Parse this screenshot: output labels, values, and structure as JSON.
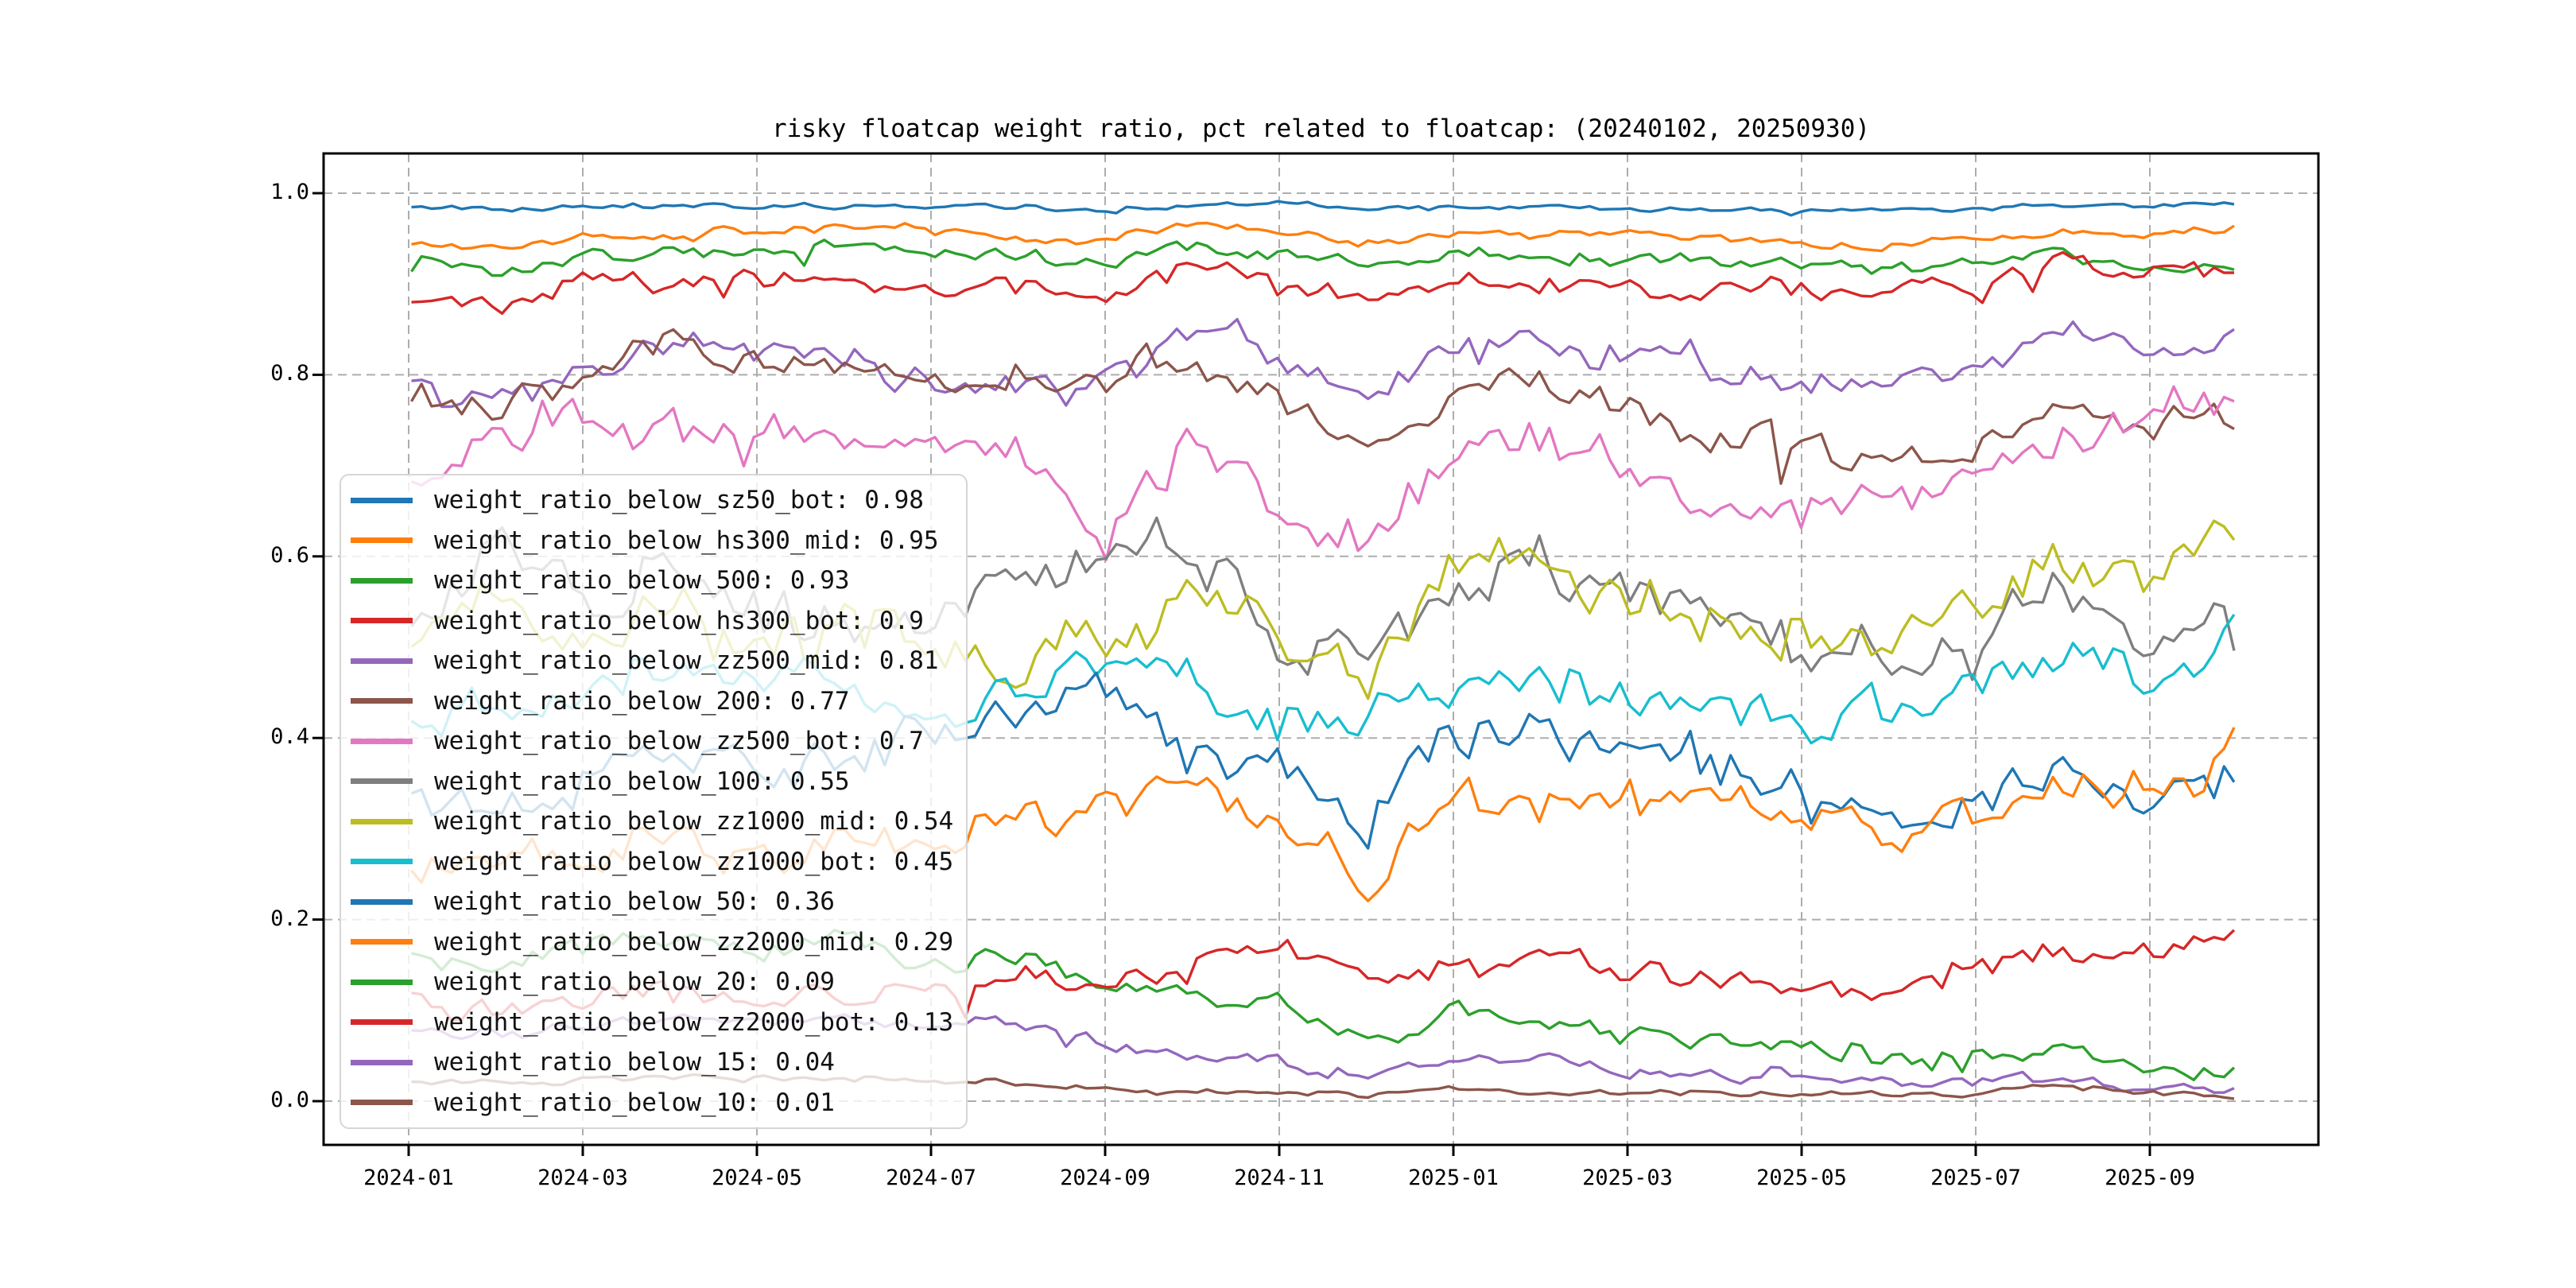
{
  "title": "risky floatcap weight ratio, pct related to floatcap: (20240102, 20250930)",
  "axes": {
    "x_tick_labels": [
      "2024-01",
      "2024-03",
      "2024-05",
      "2024-07",
      "2024-09",
      "2024-11",
      "2025-01",
      "2025-03",
      "2025-05",
      "2025-07",
      "2025-09"
    ],
    "y_tick_labels": [
      "0.0",
      "0.2",
      "0.4",
      "0.6",
      "0.8",
      "1.0"
    ]
  },
  "colors": {
    "background": "#ffffff",
    "grid": "#adadad",
    "spine": "#000000",
    "text": "#000000",
    "legend_border": "#d6d6d6"
  },
  "chart_data": {
    "type": "line",
    "title": "risky floatcap weight ratio, pct related to floatcap: (20240102, 20250930)",
    "xlabel": "",
    "ylabel": "",
    "x_range": [
      "2024-01-02",
      "2025-09-30"
    ],
    "ylim": [
      -0.048,
      1.043
    ],
    "grid": true,
    "legend_position": "center-left",
    "x_anchor_dates": [
      "2024-01",
      "2024-02",
      "2024-03",
      "2024-04",
      "2024-05",
      "2024-06",
      "2024-07",
      "2024-08",
      "2024-09",
      "2024-10",
      "2024-11",
      "2024-12",
      "2025-01",
      "2025-02",
      "2025-03",
      "2025-04",
      "2025-05",
      "2025-06",
      "2025-07",
      "2025-08",
      "2025-09",
      "2025-09-30"
    ],
    "series": [
      {
        "name": "weight_ratio_below_sz50_bot",
        "legend_value": "0.98",
        "color": "#1f77b4",
        "noise": 0.0015,
        "anchors": [
          0.983,
          0.982,
          0.985,
          0.985,
          0.984,
          0.986,
          0.986,
          0.984,
          0.982,
          0.987,
          0.988,
          0.982,
          0.985,
          0.984,
          0.983,
          0.982,
          0.982,
          0.981,
          0.983,
          0.985,
          0.986,
          0.988
        ]
      },
      {
        "name": "weight_ratio_below_hs300_mid",
        "legend_value": "0.95",
        "color": "#ff7f0e",
        "noise": 0.003,
        "anchors": [
          0.945,
          0.94,
          0.955,
          0.957,
          0.958,
          0.96,
          0.958,
          0.952,
          0.945,
          0.964,
          0.958,
          0.944,
          0.952,
          0.954,
          0.953,
          0.95,
          0.947,
          0.944,
          0.947,
          0.958,
          0.95,
          0.962
        ]
      },
      {
        "name": "weight_ratio_below_500",
        "legend_value": "0.93",
        "color": "#2ca02c",
        "noise": 0.004,
        "anchors": [
          0.924,
          0.915,
          0.935,
          0.938,
          0.937,
          0.94,
          0.935,
          0.932,
          0.923,
          0.942,
          0.933,
          0.92,
          0.93,
          0.932,
          0.928,
          0.924,
          0.92,
          0.917,
          0.92,
          0.933,
          0.918,
          0.923
        ]
      },
      {
        "name": "weight_ratio_below_hs300_bot",
        "legend_value": "0.9",
        "color": "#d62728",
        "noise": 0.006,
        "anchors": [
          0.885,
          0.872,
          0.9,
          0.905,
          0.905,
          0.91,
          0.9,
          0.9,
          0.887,
          0.92,
          0.905,
          0.888,
          0.9,
          0.905,
          0.9,
          0.896,
          0.893,
          0.888,
          0.895,
          0.925,
          0.908,
          0.92
        ]
      },
      {
        "name": "weight_ratio_below_zz500_mid",
        "legend_value": "0.81",
        "color": "#9467bd",
        "noise": 0.01,
        "anchors": [
          0.785,
          0.765,
          0.8,
          0.838,
          0.83,
          0.83,
          0.79,
          0.8,
          0.8,
          0.852,
          0.83,
          0.775,
          0.82,
          0.84,
          0.82,
          0.81,
          0.8,
          0.79,
          0.8,
          0.85,
          0.83,
          0.848
        ]
      },
      {
        "name": "weight_ratio_below_200",
        "legend_value": "0.77",
        "color": "#8c564b",
        "noise": 0.01,
        "anchors": [
          0.78,
          0.76,
          0.8,
          0.835,
          0.825,
          0.825,
          0.785,
          0.79,
          0.79,
          0.82,
          0.78,
          0.705,
          0.775,
          0.8,
          0.77,
          0.74,
          0.72,
          0.71,
          0.72,
          0.755,
          0.74,
          0.755
        ]
      },
      {
        "name": "weight_ratio_below_zz500_bot",
        "legend_value": "0.7",
        "color": "#e377c2",
        "noise": 0.013,
        "anchors": [
          0.67,
          0.73,
          0.75,
          0.74,
          0.73,
          0.75,
          0.71,
          0.71,
          0.615,
          0.73,
          0.66,
          0.625,
          0.7,
          0.725,
          0.695,
          0.66,
          0.65,
          0.645,
          0.68,
          0.73,
          0.745,
          0.768
        ]
      },
      {
        "name": "weight_ratio_below_100",
        "legend_value": "0.55",
        "color": "#7f7f7f",
        "noise": 0.016,
        "anchors": [
          0.54,
          0.62,
          0.56,
          0.6,
          0.54,
          0.52,
          0.53,
          0.55,
          0.6,
          0.62,
          0.5,
          0.48,
          0.55,
          0.6,
          0.56,
          0.54,
          0.5,
          0.47,
          0.5,
          0.58,
          0.52,
          0.565
        ]
      },
      {
        "name": "weight_ratio_below_zz1000_mid",
        "legend_value": "0.54",
        "color": "#bcbd22",
        "noise": 0.016,
        "anchors": [
          0.5,
          0.56,
          0.51,
          0.55,
          0.5,
          0.51,
          0.49,
          0.49,
          0.52,
          0.565,
          0.5,
          0.47,
          0.58,
          0.59,
          0.56,
          0.54,
          0.52,
          0.5,
          0.54,
          0.6,
          0.58,
          0.635
        ]
      },
      {
        "name": "weight_ratio_below_zz1000_bot",
        "legend_value": "0.45",
        "color": "#17becf",
        "noise": 0.013,
        "anchors": [
          0.43,
          0.42,
          0.46,
          0.48,
          0.45,
          0.46,
          0.42,
          0.45,
          0.48,
          0.48,
          0.41,
          0.41,
          0.46,
          0.47,
          0.45,
          0.44,
          0.42,
          0.43,
          0.45,
          0.5,
          0.47,
          0.525
        ]
      },
      {
        "name": "weight_ratio_below_50",
        "legend_value": "0.36",
        "color": "#1f77b4",
        "noise": 0.013,
        "anchors": [
          0.33,
          0.31,
          0.35,
          0.37,
          0.36,
          0.38,
          0.41,
          0.43,
          0.45,
          0.4,
          0.37,
          0.3,
          0.4,
          0.4,
          0.39,
          0.38,
          0.34,
          0.3,
          0.33,
          0.36,
          0.33,
          0.35
        ]
      },
      {
        "name": "weight_ratio_below_zz2000_mid",
        "legend_value": "0.29",
        "color": "#ff7f0e",
        "noise": 0.012,
        "anchors": [
          0.26,
          0.25,
          0.27,
          0.285,
          0.27,
          0.28,
          0.27,
          0.31,
          0.32,
          0.33,
          0.3,
          0.245,
          0.33,
          0.32,
          0.33,
          0.34,
          0.3,
          0.295,
          0.32,
          0.35,
          0.34,
          0.385
        ]
      },
      {
        "name": "weight_ratio_below_20",
        "legend_value": "0.09",
        "color": "#2ca02c",
        "noise": 0.007,
        "anchors": [
          0.155,
          0.15,
          0.17,
          0.18,
          0.165,
          0.17,
          0.15,
          0.16,
          0.125,
          0.12,
          0.11,
          0.065,
          0.095,
          0.085,
          0.075,
          0.07,
          0.06,
          0.045,
          0.05,
          0.055,
          0.04,
          0.042
        ]
      },
      {
        "name": "weight_ratio_below_zz2000_bot",
        "legend_value": "0.13",
        "color": "#d62728",
        "noise": 0.007,
        "anchors": [
          0.105,
          0.1,
          0.115,
          0.12,
          0.115,
          0.12,
          0.12,
          0.135,
          0.14,
          0.15,
          0.165,
          0.13,
          0.145,
          0.15,
          0.145,
          0.14,
          0.115,
          0.12,
          0.15,
          0.165,
          0.16,
          0.183
        ]
      },
      {
        "name": "weight_ratio_below_15",
        "legend_value": "0.04",
        "color": "#9467bd",
        "noise": 0.004,
        "anchors": [
          0.08,
          0.075,
          0.085,
          0.09,
          0.085,
          0.088,
          0.08,
          0.09,
          0.065,
          0.05,
          0.045,
          0.028,
          0.05,
          0.042,
          0.035,
          0.03,
          0.027,
          0.022,
          0.02,
          0.028,
          0.018,
          0.014
        ]
      },
      {
        "name": "weight_ratio_below_10",
        "legend_value": "0.01",
        "color": "#8c564b",
        "noise": 0.0018,
        "anchors": [
          0.022,
          0.02,
          0.024,
          0.026,
          0.024,
          0.023,
          0.022,
          0.022,
          0.012,
          0.01,
          0.01,
          0.008,
          0.012,
          0.011,
          0.01,
          0.009,
          0.008,
          0.008,
          0.008,
          0.018,
          0.008,
          0.005
        ]
      }
    ]
  }
}
